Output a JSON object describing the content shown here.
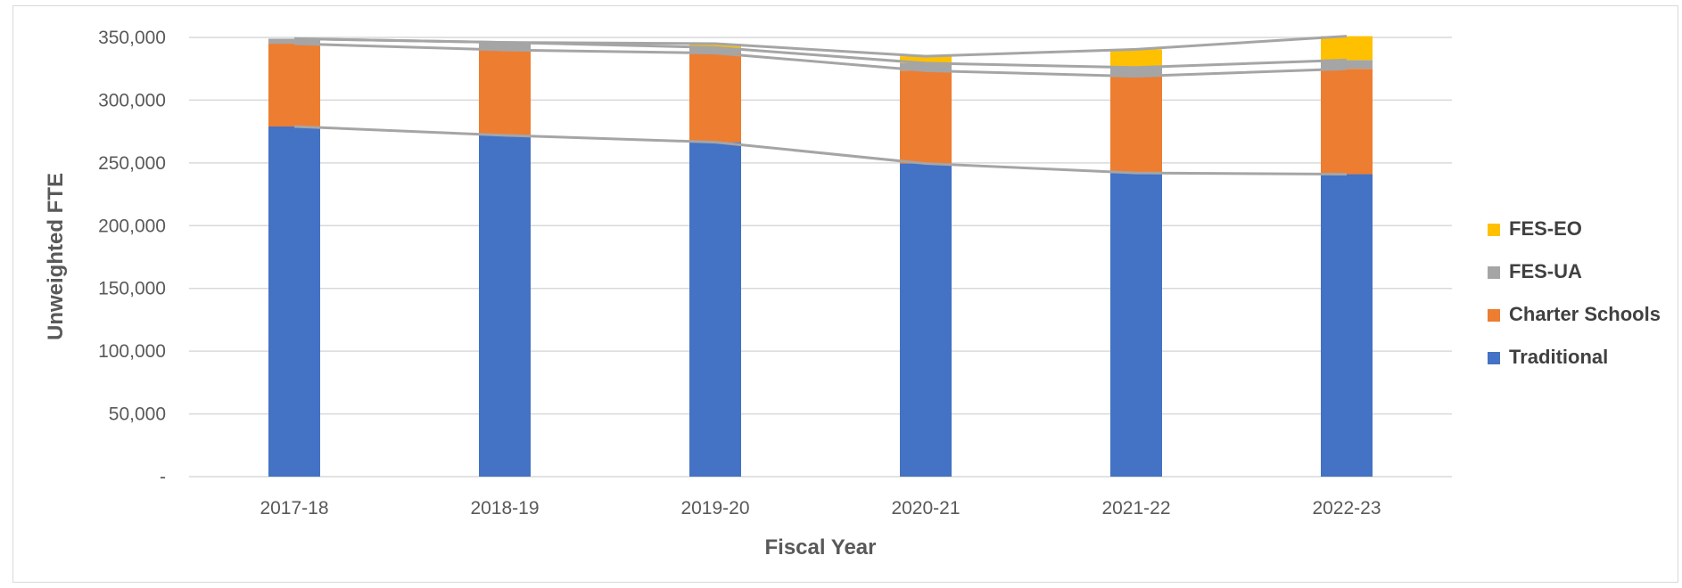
{
  "chart_data": {
    "type": "bar",
    "stacked": true,
    "series_lines": true,
    "title": "",
    "xlabel": "Fiscal Year",
    "ylabel": "Unweighted FTE",
    "ylim": [
      0,
      350000
    ],
    "ytick_values": [
      0,
      50000,
      100000,
      150000,
      200000,
      250000,
      300000,
      350000
    ],
    "ytick_labels": [
      "-",
      "50,000",
      "100,000",
      "150,000",
      "200,000",
      "250,000",
      "300,000",
      "350,000"
    ],
    "grid": true,
    "legend_position": "right",
    "categories": [
      "2017-18",
      "2018-19",
      "2019-20",
      "2020-21",
      "2021-22",
      "2022-23"
    ],
    "series": [
      {
        "name": "Traditional",
        "color": "#4472C4",
        "values": [
          279000,
          272000,
          266500,
          249500,
          242000,
          241000
        ]
      },
      {
        "name": "Charter Schools",
        "color": "#ED7D31",
        "values": [
          66000,
          68000,
          71000,
          74000,
          77000,
          84000
        ]
      },
      {
        "name": "FES-UA",
        "color": "#A5A5A5",
        "values": [
          4000,
          6000,
          4500,
          6000,
          7000,
          7000
        ]
      },
      {
        "name": "FES-EO",
        "color": "#FFC000",
        "values": [
          0,
          0,
          3000,
          5500,
          14500,
          19000
        ]
      }
    ],
    "connector_color": "#A5A5A5",
    "legend_order": [
      "FES-EO",
      "FES-UA",
      "Charter Schools",
      "Traditional"
    ]
  }
}
